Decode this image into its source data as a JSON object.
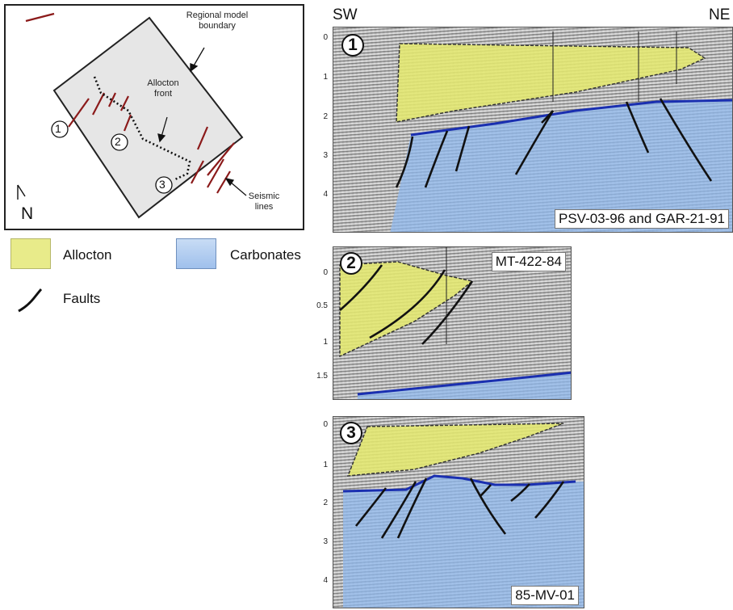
{
  "map": {
    "boundary_label": "Regional model\nboundary",
    "front_label": "Allocton\nfront",
    "seismic_label": "Seismic\nlines",
    "north_label": "N",
    "line_markers": [
      "1",
      "2",
      "3"
    ]
  },
  "legend": {
    "allocton_label": "Allocton",
    "carbonates_label": "Carbonates",
    "faults_label": "Faults",
    "allocton_color": "#e8eb8a",
    "carbonates_color": "#aac8ee",
    "fault_color": "#111111"
  },
  "sections": {
    "orientation_left": "SW",
    "orientation_right": "NE",
    "s1": {
      "number": "1",
      "label": "PSV-03-96 and GAR-21-91",
      "ticks": [
        "0",
        "1",
        "2",
        "3",
        "4"
      ]
    },
    "s2": {
      "number": "2",
      "label": "MT-422-84",
      "ticks": [
        "0",
        "0.5",
        "1",
        "1.5"
      ]
    },
    "s3": {
      "number": "3",
      "label": "85-MV-01",
      "ticks": [
        "0",
        "1",
        "2",
        "3",
        "4"
      ]
    }
  },
  "colors": {
    "allocton_fill": "#e4e86f",
    "carbonates_fill": "#8fb8ee",
    "horizon_line": "#1a2fb0",
    "seismic_line": "#8b1a1a"
  }
}
